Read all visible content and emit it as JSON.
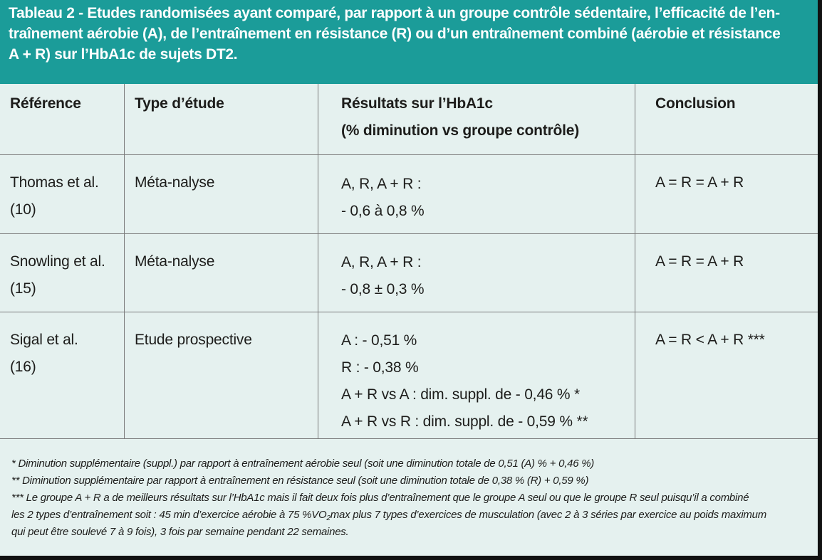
{
  "title": {
    "lines": [
      "Tableau 2 - Etudes randomisées ayant comparé, par rapport à un groupe contrôle sédentaire, l’efficacité de l’en-",
      "traînement aérobie (A), de l’entraînement en résistance (R) ou d’un entraînement combiné (aérobie et résistance",
      "A + R) sur l’HbA1c de sujets DT2."
    ]
  },
  "table": {
    "headers": {
      "reference": "Référence",
      "study_type": "Type d’étude",
      "results_line1": "Résultats sur l’HbA1c",
      "results_line2": "(% diminution vs groupe contrôle)",
      "conclusion": "Conclusion"
    },
    "rows": [
      {
        "reference": [
          "Thomas et al.",
          "(10)"
        ],
        "study_type": "Méta-nalyse",
        "results": [
          "A, R, A + R :",
          "- 0,6 à 0,8 %"
        ],
        "conclusion": "A = R = A + R"
      },
      {
        "reference": [
          "Snowling et al.",
          "(15)"
        ],
        "study_type": "Méta-nalyse",
        "results": [
          "A, R, A + R :",
          "- 0,8 ± 0,3 %"
        ],
        "conclusion": "A = R = A + R"
      },
      {
        "reference": [
          "Sigal et al.",
          "(16)"
        ],
        "study_type": "Etude prospective",
        "results": [
          "A : - 0,51 %",
          "R : - 0,38 %",
          "A + R vs A : dim. suppl. de - 0,46 % *",
          "A + R vs R : dim. suppl. de - 0,59 % **"
        ],
        "conclusion": "A = R < A + R ***"
      }
    ]
  },
  "notes": {
    "n1": "* Diminution supplémentaire (suppl.) par rapport à entraînement aérobie seul (soit une diminution totale de 0,51 (A) % + 0,46 %)",
    "n2": "** Diminution supplémentaire par rapport à entraînement en résistance seul (soit une diminution totale de 0,38 % (R) + 0,59 %)",
    "n3": "*** Le groupe A + R a de meilleurs résultats sur l’HbA1c mais il fait deux fois plus d’entraînement que le groupe A seul ou que le groupe R seul puisqu’il a combiné",
    "n4_before": "les 2 types d’entraînement soit : 45 min d’exercice aérobie à 75 %VO",
    "n4_sub": "2",
    "n4_after": "max plus 7 types d’exercices de musculation (avec 2 à 3 séries par exercice au poids maximum",
    "n5": "qui peut être soulevé 7 à 9 fois), 3 fois par semaine pendant 22 semaines."
  },
  "colors": {
    "header_bg": "#1b9c99",
    "body_bg": "#e5f1ef",
    "text": "#1d1d1b"
  }
}
